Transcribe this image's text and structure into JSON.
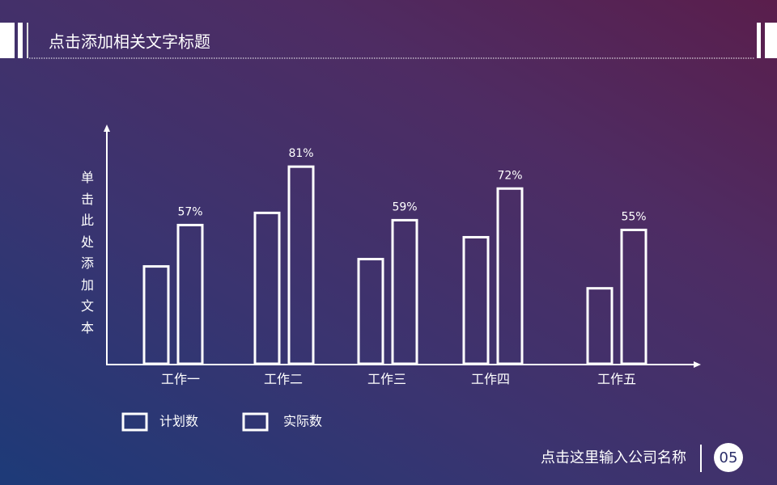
{
  "header": {
    "title": "点击添加相关文字标题"
  },
  "chart_data": {
    "type": "bar",
    "y_label": "单击此处添加文本",
    "categories": [
      "工作一",
      "工作二",
      "工作三",
      "工作四",
      "工作五"
    ],
    "series": [
      {
        "name": "计划数",
        "color": "#ffffff",
        "values": [
          40,
          62,
          43,
          52,
          31
        ]
      },
      {
        "name": "实际数",
        "color": "#ffffff",
        "values": [
          57,
          81,
          59,
          72,
          55
        ],
        "value_labels": [
          "57%",
          "81%",
          "59%",
          "72%",
          "55%"
        ]
      }
    ],
    "ylim": [
      0,
      97
    ]
  },
  "footer": {
    "company": "点击这里输入公司名称",
    "page": "05"
  }
}
